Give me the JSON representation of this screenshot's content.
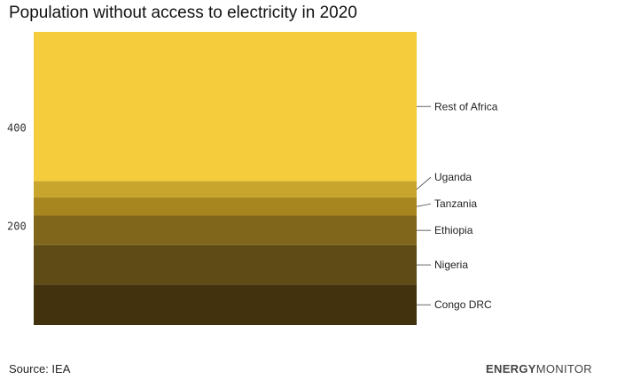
{
  "chart_data": {
    "type": "bar",
    "stacked": true,
    "title": "Population without access to electricity in 2020",
    "ylim": [
      0,
      595
    ],
    "y_ticks": [
      200,
      400
    ],
    "series": [
      {
        "name": "Congo DRC",
        "value": 82,
        "color": "#42330e"
      },
      {
        "name": "Nigeria",
        "value": 80,
        "color": "#5e4b15"
      },
      {
        "name": "Ethiopia",
        "value": 60,
        "color": "#7f661b"
      },
      {
        "name": "Tanzania",
        "value": 37,
        "color": "#a8861f"
      },
      {
        "name": "Uganda",
        "value": 33,
        "color": "#c8a52c"
      },
      {
        "name": "Rest of Africa",
        "value": 303,
        "color": "#f4cc3c"
      }
    ]
  },
  "footer": {
    "source": "Source: IEA",
    "brand_bold": "ENERGY",
    "brand_light": "MONITOR"
  }
}
